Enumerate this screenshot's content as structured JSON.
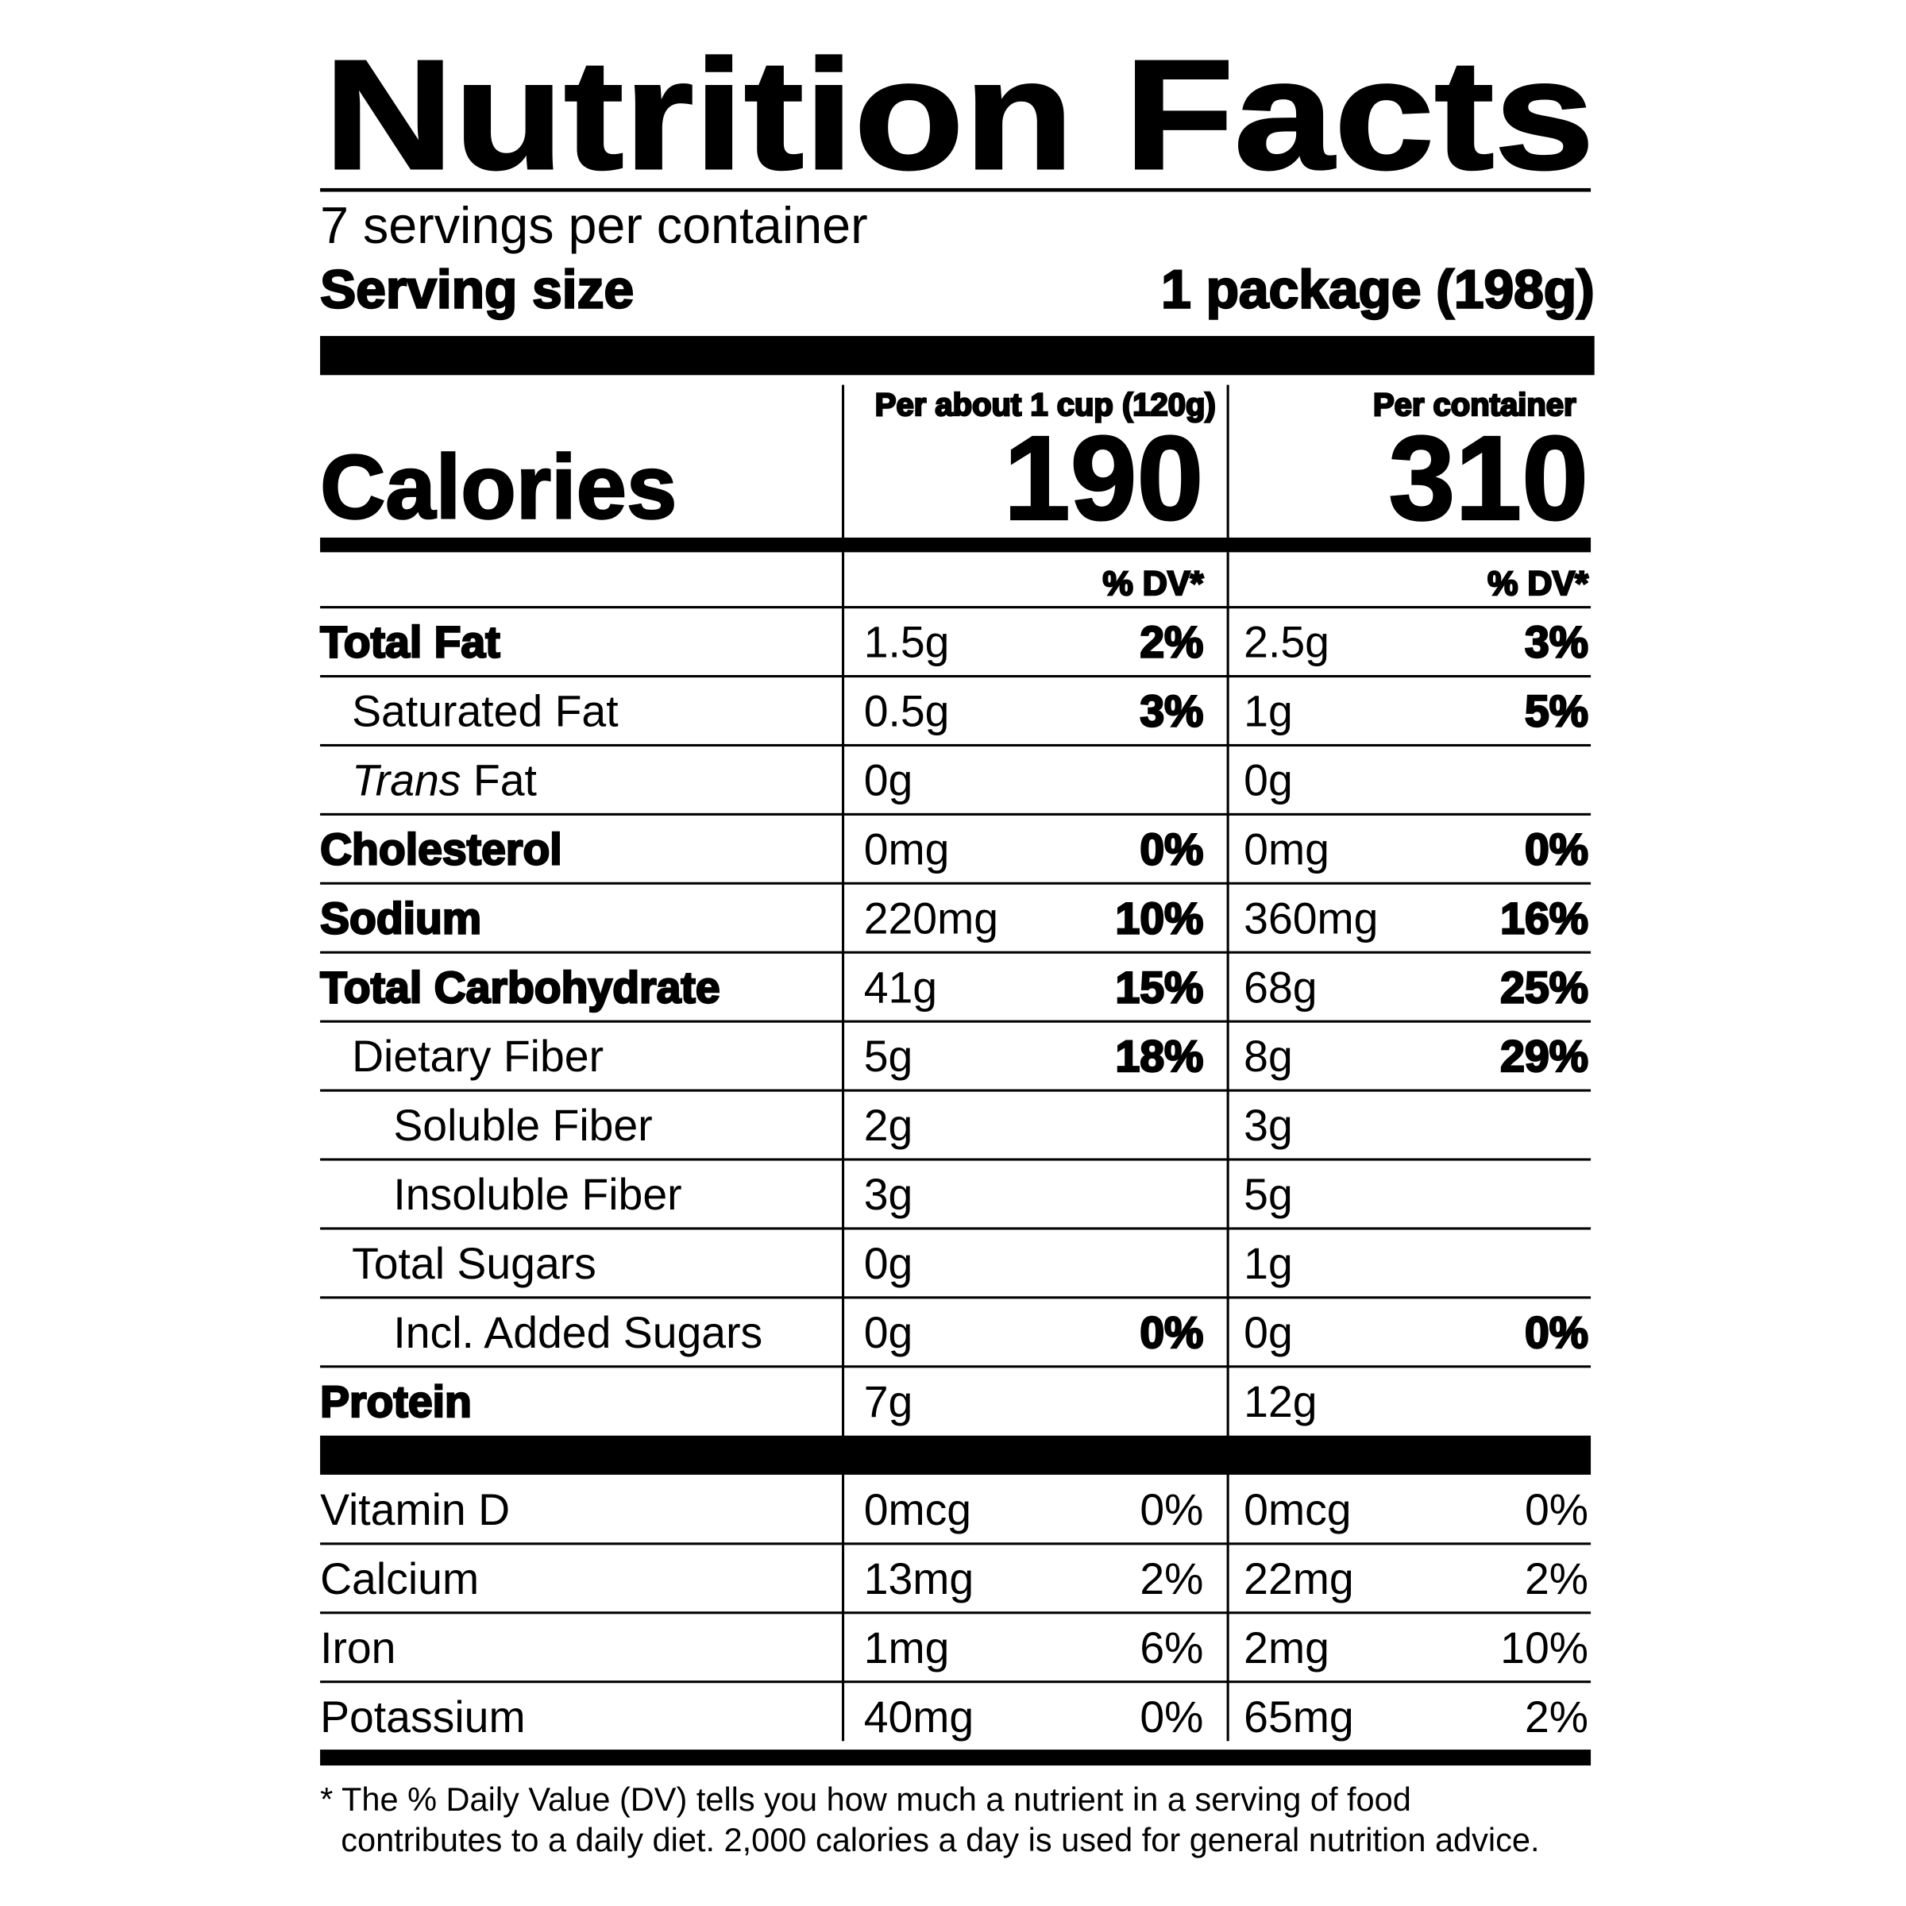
{
  "title": "Nutrition Facts",
  "servings": "7 servings per container",
  "serving_size": {
    "label": "Serving size",
    "value": "1 package (198g)"
  },
  "calories": {
    "label": "Calories",
    "columns": [
      {
        "header": "Per about 1 cup (120g)",
        "value": "190"
      },
      {
        "header": "Per container",
        "value": "310"
      }
    ]
  },
  "dv_header": [
    "% DV*",
    "% DV*"
  ],
  "nutrients": [
    {
      "name": "Total Fat",
      "bold": true,
      "indent": 0,
      "amounts": [
        "1.5g",
        "2.5g"
      ],
      "dv": [
        "2%",
        "3%"
      ]
    },
    {
      "name": "Saturated Fat",
      "bold": false,
      "indent": 1,
      "amounts": [
        "0.5g",
        "1g"
      ],
      "dv": [
        "3%",
        "5%"
      ]
    },
    {
      "name_italic": "Trans",
      "name": "Fat",
      "bold": false,
      "indent": 1,
      "amounts": [
        "0g",
        "0g"
      ],
      "dv": [
        null,
        null
      ]
    },
    {
      "name": "Cholesterol",
      "bold": true,
      "indent": 0,
      "amounts": [
        "0mg",
        "0mg"
      ],
      "dv": [
        "0%",
        "0%"
      ]
    },
    {
      "name": "Sodium",
      "bold": true,
      "indent": 0,
      "amounts": [
        "220mg",
        "360mg"
      ],
      "dv": [
        "10%",
        "16%"
      ]
    },
    {
      "name": "Total Carbohydrate",
      "bold": true,
      "indent": 0,
      "amounts": [
        "41g",
        "68g"
      ],
      "dv": [
        "15%",
        "25%"
      ]
    },
    {
      "name": "Dietary Fiber",
      "bold": false,
      "indent": 1,
      "amounts": [
        "5g",
        "8g"
      ],
      "dv": [
        "18%",
        "29%"
      ]
    },
    {
      "name": "Soluble Fiber",
      "bold": false,
      "indent": 2,
      "amounts": [
        "2g",
        "3g"
      ],
      "dv": [
        null,
        null
      ]
    },
    {
      "name": "Insoluble Fiber",
      "bold": false,
      "indent": 2,
      "amounts": [
        "3g",
        "5g"
      ],
      "dv": [
        null,
        null
      ]
    },
    {
      "name": "Total Sugars",
      "bold": false,
      "indent": 1,
      "amounts": [
        "0g",
        "1g"
      ],
      "dv": [
        null,
        null
      ]
    },
    {
      "name": "Incl. Added Sugars",
      "bold": false,
      "indent": 2,
      "amounts": [
        "0g",
        "0g"
      ],
      "dv": [
        "0%",
        "0%"
      ]
    },
    {
      "name": "Protein",
      "bold": true,
      "indent": 0,
      "amounts": [
        "7g",
        "12g"
      ],
      "dv": [
        null,
        null
      ]
    }
  ],
  "vitamins": [
    {
      "name": "Vitamin D",
      "amounts": [
        "0mcg",
        "0mcg"
      ],
      "dv": [
        "0%",
        "0%"
      ]
    },
    {
      "name": "Calcium",
      "amounts": [
        "13mg",
        "22mg"
      ],
      "dv": [
        "2%",
        "2%"
      ]
    },
    {
      "name": "Iron",
      "amounts": [
        "1mg",
        "2mg"
      ],
      "dv": [
        "6%",
        "10%"
      ]
    },
    {
      "name": "Potassium",
      "amounts": [
        "40mg",
        "65mg"
      ],
      "dv": [
        "0%",
        "2%"
      ]
    }
  ],
  "footnote": [
    "* The % Daily Value (DV) tells you how much a nutrient in a serving of food",
    "contributes to a daily diet. 2,000 calories a day is used for general nutrition advice."
  ]
}
